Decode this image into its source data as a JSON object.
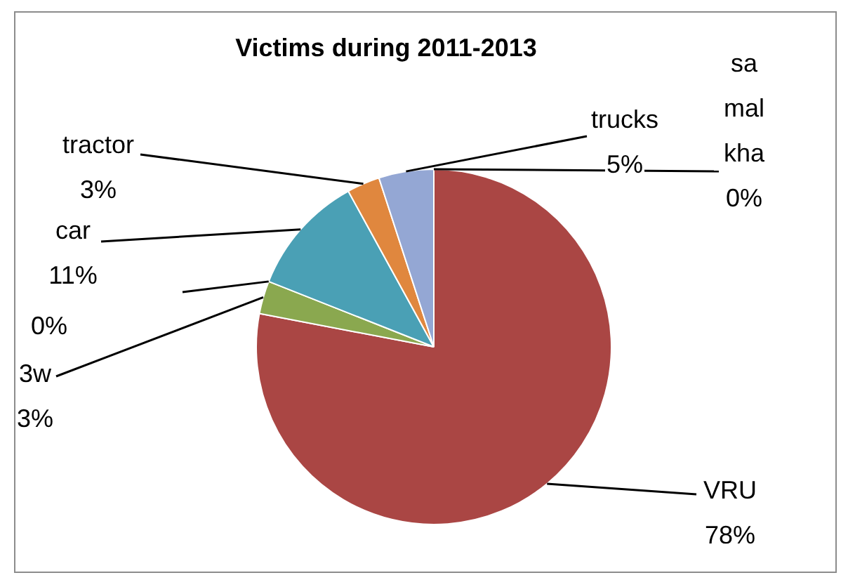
{
  "chart_data": {
    "type": "pie",
    "title": "Victims during 2011-2013",
    "categories": [
      "sa mal kha",
      "VRU",
      "3w",
      null,
      "car",
      "tractor",
      "trucks"
    ],
    "values": [
      0,
      78,
      3,
      0,
      11,
      3,
      5
    ],
    "value_labels": [
      "0%",
      "78%",
      "3%",
      "0%",
      "11%",
      "3%",
      "5%"
    ],
    "colors": [
      "#4f81bd",
      "#aa4644",
      "#8aa84f",
      "#7e63a0",
      "#4aa0b5",
      "#e0873e",
      "#94a7d4"
    ],
    "legend": false
  }
}
